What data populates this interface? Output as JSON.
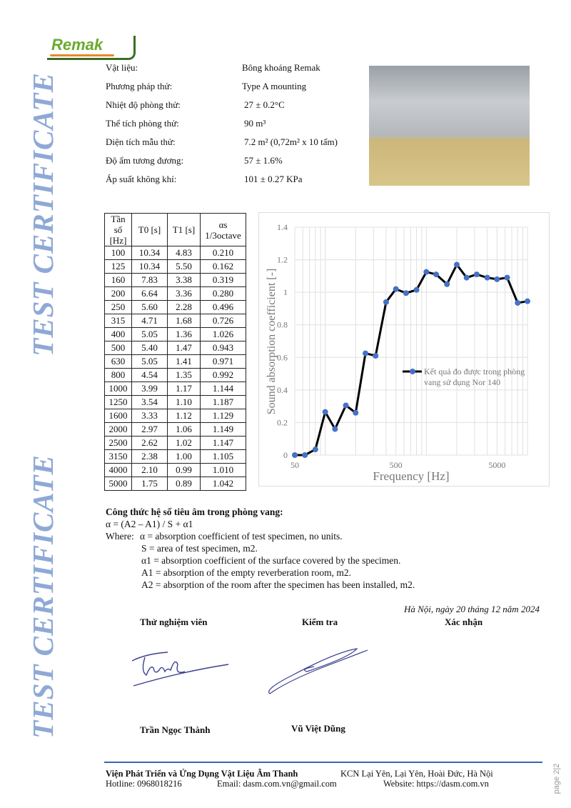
{
  "watermark_text": "TEST CERTIFICATE",
  "logo": {
    "brand": "Remak",
    "url": "www.remak.com"
  },
  "info": [
    {
      "label": "Vật liệu:",
      "value": "Bông khoáng Remak"
    },
    {
      "label": "Phương pháp thử:",
      "value": "Type A mounting"
    },
    {
      "label": "Nhiệt độ phòng thử:",
      "value": "27  ± 0.2°C"
    },
    {
      "label": "Thể tích phòng thử:",
      "value": "90 m³"
    },
    {
      "label": "Diện tích mẫu thử:",
      "value": "7.2 m² (0,72m² x 10 tấm)"
    },
    {
      "label": "Độ ẩm tương đương:",
      "value": "57 ± 1.6%"
    },
    {
      "label": "Áp suất không khí:",
      "value": "101 ±  0.27  KPa"
    }
  ],
  "table": {
    "headers": [
      "Tần số [Hz]",
      "T0 [s]",
      "T1 [s]",
      "αs 1/3octave"
    ],
    "rows": [
      [
        "100",
        "10.34",
        "4.83",
        "0.210"
      ],
      [
        "125",
        "10.34",
        "5.50",
        "0.162"
      ],
      [
        "160",
        "7.83",
        "3.38",
        "0.319"
      ],
      [
        "200",
        "6.64",
        "3.36",
        "0.280"
      ],
      [
        "250",
        "5.60",
        "2.28",
        "0.496"
      ],
      [
        "315",
        "4.71",
        "1.68",
        "0.726"
      ],
      [
        "400",
        "5.05",
        "1.36",
        "1.026"
      ],
      [
        "500",
        "5.40",
        "1.47",
        "0.943"
      ],
      [
        "630",
        "5.05",
        "1.41",
        "0.971"
      ],
      [
        "800",
        "4.54",
        "1.35",
        "0.992"
      ],
      [
        "1000",
        "3.99",
        "1.17",
        "1.144"
      ],
      [
        "1250",
        "3.54",
        "1.10",
        "1.187"
      ],
      [
        "1600",
        "3.33",
        "1.12",
        "1.129"
      ],
      [
        "2000",
        "2.97",
        "1.06",
        "1.149"
      ],
      [
        "2500",
        "2.62",
        "1.02",
        "1.147"
      ],
      [
        "3150",
        "2.38",
        "1.00",
        "1.105"
      ],
      [
        "4000",
        "2.10",
        "0.99",
        "1.010"
      ],
      [
        "5000",
        "1.75",
        "0.89",
        "1.042"
      ]
    ]
  },
  "chart_data": {
    "type": "line",
    "xlabel": "Frequency [Hz]",
    "ylabel": "Sound absorption coefficient [-]",
    "x_scale": "log",
    "xlim": [
      50,
      10000
    ],
    "ylim": [
      0,
      1.4
    ],
    "x_ticks": [
      "50",
      "500",
      "5000"
    ],
    "y_ticks": [
      "0",
      "0.2",
      "0.4",
      "0.6",
      "0.8",
      "1",
      "1.2",
      "1.4"
    ],
    "grid": true,
    "legend_position": "center-right",
    "line_color": "#000000",
    "marker_color": "#4472c4",
    "series": [
      {
        "name": "Kết quả đo được trong phòng vang sử dụng Nor 140",
        "x": [
          50,
          63,
          80,
          100,
          125,
          160,
          200,
          250,
          315,
          400,
          500,
          630,
          800,
          1000,
          1250,
          1600,
          2000,
          2500,
          3150,
          4000,
          5000,
          6300,
          8000,
          10000
        ],
        "y": [
          0,
          0,
          0.035,
          0.265,
          0.16,
          0.305,
          0.26,
          0.625,
          0.61,
          0.94,
          1.02,
          0.995,
          1.015,
          1.125,
          1.11,
          1.05,
          1.17,
          1.09,
          1.11,
          1.09,
          1.08,
          1.09,
          0.935,
          0.945
        ]
      }
    ]
  },
  "formula": {
    "title": "Công thức hệ số tiêu âm trong phòng vang:",
    "equation": "α = (A2 – A1) / S + α1",
    "where_label": "Where:",
    "defs": [
      "α   = absorption coefficient of test specimen, no units.",
      "S   = area of test specimen, m2.",
      "α1  = absorption coefficient of the surface covered by the specimen.",
      "A1  = absorption of the empty reverberation room, m2.",
      "A2  = absorption of the room after the specimen has been installed, m2."
    ]
  },
  "signatures": {
    "date": "Hà Nội, ngày 20 tháng 12 năm 2024",
    "roles": [
      "Thử nghiệm viên",
      "Kiểm tra",
      "Xác nhận"
    ],
    "names": [
      "Trần Ngọc Thành",
      "Vũ Việt Dũng"
    ],
    "signature_text": "Thanh"
  },
  "footer": {
    "org": "Viện Phát Triển và Ứng Dụng Vật Liệu Âm Thanh",
    "address": "KCN Lại Yên, Lại Yên, Hoài Đức, Hà Nội",
    "hotline": "Hotline: 0968018216",
    "email": "Email: dasm.com.vn@gmail.com",
    "website": "Website: https://dasm.com.vn",
    "page": "page 2|2"
  }
}
